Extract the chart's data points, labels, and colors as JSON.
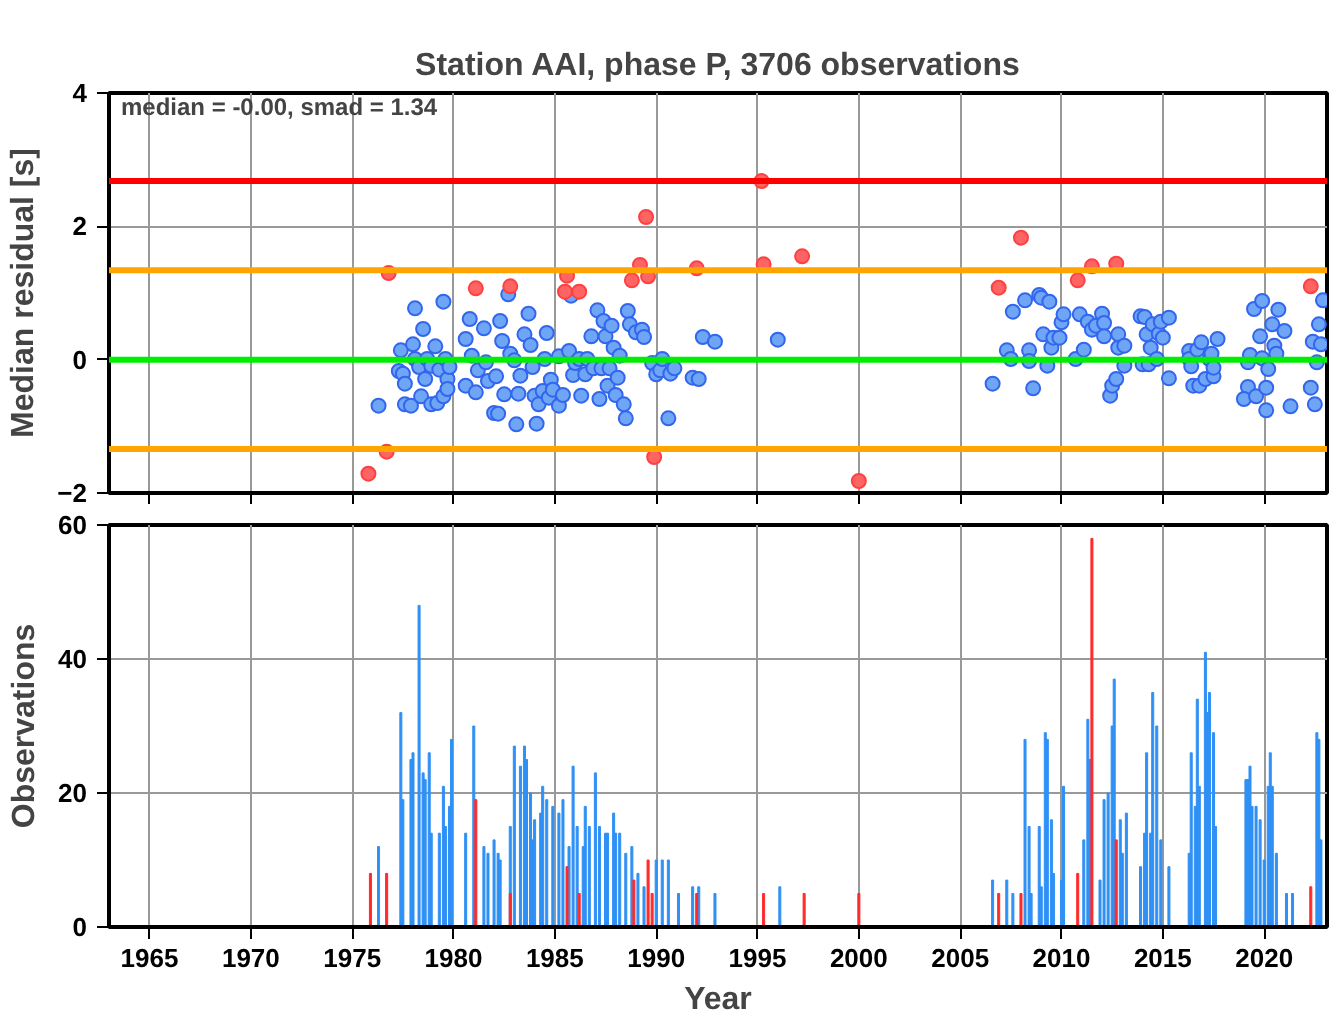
{
  "chart_data": [
    {
      "type": "scatter",
      "title": "Station AAI, phase P, 3706 observations",
      "ylabel": "Median residual [s]",
      "xlim": [
        1963.0,
        2023.1
      ],
      "xticks": [
        1965,
        1970,
        1975,
        1980,
        1985,
        1990,
        1995,
        2000,
        2005,
        2010,
        2015,
        2020
      ],
      "ylim": [
        -2,
        4
      ],
      "yticks": [
        -2,
        0,
        2,
        4
      ],
      "tick_labels": "y",
      "grid": true,
      "marker": "circle",
      "annotations": [
        "median = -0.00, smad = 1.34"
      ],
      "ref_lines": [
        {
          "axis": "y",
          "value": 2.68,
          "color": "#ff0000"
        },
        {
          "axis": "y",
          "value": 1.34,
          "color": "#ffa500"
        },
        {
          "axis": "y",
          "value": 0,
          "color": "#00ee00"
        },
        {
          "axis": "y",
          "value": -1.34,
          "color": "#ffa500"
        }
      ],
      "series": [
        {
          "color": "#6ea6f5",
          "x": [
            1976.3,
            1977.4,
            1977.3,
            1977.5,
            1977.6,
            1977.6,
            1977.9,
            1978.0,
            1978.1,
            1978.1,
            1978.3,
            1978.4,
            1978.5,
            1978.6,
            1978.7,
            1978.9,
            1978.9,
            1979.1,
            1979.2,
            1979.3,
            1979.5,
            1979.5,
            1979.6,
            1979.7,
            1979.8,
            1979.7,
            1980.6,
            1980.6,
            1980.8,
            1980.9,
            1981.1,
            1981.2,
            1981.5,
            1981.6,
            1981.7,
            1982.0,
            1982.2,
            1982.1,
            1982.3,
            1982.4,
            1982.5,
            1982.7,
            1982.8,
            1983.0,
            1983.1,
            1983.2,
            1983.3,
            1983.5,
            1983.7,
            1983.8,
            1983.9,
            1984.0,
            1984.1,
            1984.2,
            1984.4,
            1984.5,
            1984.6,
            1984.7,
            1984.8,
            1984.9,
            1985.2,
            1985.2,
            1985.4,
            1985.7,
            1985.8,
            1985.9,
            1986.0,
            1986.2,
            1986.3,
            1986.5,
            1986.6,
            1986.8,
            1986.9,
            1987.1,
            1987.2,
            1987.3,
            1987.4,
            1987.5,
            1987.6,
            1987.7,
            1987.8,
            1987.9,
            1988.0,
            1988.1,
            1988.2,
            1988.4,
            1988.5,
            1988.6,
            1988.7,
            1989.0,
            1989.3,
            1989.4,
            1989.8,
            1990.0,
            1990.2,
            1990.3,
            1990.6,
            1990.7,
            1990.9,
            1991.8,
            1992.1,
            1992.3,
            1992.9,
            1996.0,
            2006.6,
            2007.3,
            2007.5,
            2007.6,
            2008.2,
            2008.4,
            2008.4,
            2008.6,
            2008.9,
            2009.0,
            2009.4,
            2009.1,
            2009.3,
            2009.5,
            2009.6,
            2009.9,
            2010.0,
            2010.1,
            2010.7,
            2010.9,
            2011.1,
            2011.3,
            2011.5,
            2011.7,
            2012.0,
            2012.1,
            2012.1,
            2012.4,
            2012.5,
            2012.7,
            2012.8,
            2012.8,
            2013.1,
            2013.1,
            2013.9,
            2014.1,
            2014.0,
            2014.2,
            2014.3,
            2014.4,
            2014.5,
            2014.8,
            2014.9,
            2014.7,
            2015.0,
            2015.3,
            2015.3,
            2016.3,
            2016.3,
            2016.4,
            2016.5,
            2016.7,
            2016.8,
            2016.9,
            2017.1,
            2017.3,
            2017.4,
            2017.5,
            2017.5,
            2017.7,
            2019.2,
            2019.3,
            2019.2,
            2019.0,
            2019.5,
            2019.6,
            2019.8,
            2019.9,
            2019.9,
            2020.1,
            2020.1,
            2020.2,
            2020.4,
            2020.5,
            2020.6,
            2020.7,
            2021.0,
            2021.3,
            2022.3,
            2022.4,
            2022.5,
            2022.6,
            2022.7,
            2022.8,
            2022.9
          ],
          "values": [
            -0.69,
            0.14,
            -0.17,
            -0.21,
            -0.36,
            -0.67,
            -0.69,
            0.23,
            0.77,
            0.01,
            -0.11,
            -0.55,
            0.46,
            -0.29,
            0.01,
            -0.67,
            -0.09,
            0.2,
            -0.65,
            -0.15,
            -0.55,
            0.87,
            0.01,
            -0.29,
            -0.11,
            -0.44,
            0.31,
            -0.39,
            0.61,
            0.06,
            -0.49,
            -0.16,
            0.47,
            -0.04,
            -0.32,
            -0.8,
            -0.81,
            -0.25,
            0.58,
            0.28,
            -0.52,
            0.98,
            0.09,
            -0.01,
            -0.97,
            -0.51,
            -0.24,
            0.38,
            0.69,
            0.22,
            -0.11,
            -0.54,
            -0.96,
            -0.67,
            -0.47,
            0.01,
            0.4,
            -0.57,
            -0.3,
            -0.45,
            0.05,
            -0.69,
            -0.53,
            0.13,
            0.96,
            -0.23,
            -0.05,
            0.01,
            -0.54,
            -0.22,
            0.01,
            0.35,
            -0.13,
            0.74,
            -0.59,
            -0.13,
            0.58,
            0.35,
            -0.39,
            -0.13,
            0.51,
            0.18,
            -0.53,
            -0.27,
            0.06,
            -0.67,
            -0.88,
            0.73,
            0.53,
            0.41,
            0.45,
            0.34,
            -0.05,
            -0.22,
            -0.16,
            0.01,
            -0.88,
            -0.21,
            -0.13,
            -0.27,
            -0.29,
            0.34,
            0.27,
            0.3,
            -0.36,
            0.14,
            0.01,
            0.72,
            0.89,
            0.14,
            -0.02,
            -0.43,
            0.97,
            0.93,
            0.87,
            0.38,
            -0.09,
            0.18,
            0.33,
            0.33,
            0.56,
            0.68,
            0.01,
            0.68,
            0.15,
            0.57,
            0.45,
            0.51,
            0.69,
            0.55,
            0.35,
            -0.54,
            -0.39,
            -0.29,
            0.38,
            0.18,
            -0.09,
            0.21,
            0.65,
            0.64,
            -0.07,
            0.38,
            -0.07,
            0.18,
            0.53,
            0.39,
            0.57,
            0.01,
            0.33,
            0.63,
            -0.28,
            0.13,
            0.01,
            -0.1,
            -0.39,
            0.15,
            -0.39,
            0.26,
            -0.29,
            0.01,
            0.09,
            -0.25,
            -0.12,
            0.31,
            -0.04,
            0.07,
            -0.41,
            -0.59,
            0.76,
            -0.55,
            0.35,
            0.88,
            0.02,
            -0.76,
            -0.42,
            -0.14,
            0.53,
            0.21,
            0.09,
            0.75,
            0.43,
            -0.7,
            -0.42,
            0.27,
            -0.67,
            -0.04,
            0.53,
            0.23,
            0.89
          ]
        },
        {
          "color": "#ff6464",
          "x": [
            1976.8,
            1975.8,
            1976.7,
            1981.1,
            1982.8,
            1985.6,
            1985.5,
            1986.2,
            1989.5,
            1989.2,
            1988.8,
            1989.6,
            1989.9,
            1992.0,
            1995.2,
            1995.3,
            1997.2,
            2000.0,
            2008.0,
            2006.9,
            2011.5,
            2010.8,
            2012.7,
            2022.3
          ],
          "values": [
            1.3,
            -1.71,
            -1.38,
            1.07,
            1.1,
            1.26,
            1.02,
            1.02,
            2.14,
            1.42,
            1.19,
            1.25,
            -1.46,
            1.37,
            2.68,
            1.43,
            1.55,
            -1.82,
            1.83,
            1.08,
            1.4,
            1.19,
            1.44,
            1.1
          ]
        }
      ]
    },
    {
      "type": "bar",
      "xlabel": "Year",
      "ylabel": "Observations",
      "xlim": [
        1963.0,
        2023.1
      ],
      "xticks": [
        1965,
        1970,
        1975,
        1980,
        1985,
        1990,
        1995,
        2000,
        2005,
        2010,
        2015,
        2020
      ],
      "ylim": [
        0,
        60
      ],
      "yticks": [
        0,
        20,
        40,
        60
      ],
      "grid": true,
      "series": [
        {
          "color": "#2f90f5",
          "x": [
            1976.3,
            1977.4,
            1977.5,
            1977.9,
            1978.0,
            1978.3,
            1978.5,
            1978.6,
            1978.8,
            1978.9,
            1979.3,
            1979.5,
            1979.6,
            1979.8,
            1979.9,
            1980.6,
            1981.0,
            1981.5,
            1981.7,
            1982.0,
            1982.2,
            1982.3,
            1982.8,
            1983.0,
            1983.3,
            1983.5,
            1983.6,
            1983.8,
            1983.9,
            1984.0,
            1984.3,
            1984.4,
            1984.6,
            1984.9,
            1985.2,
            1985.4,
            1985.7,
            1985.9,
            1986.1,
            1986.4,
            1986.5,
            1986.7,
            1987.0,
            1987.2,
            1987.5,
            1987.6,
            1987.9,
            1988.0,
            1988.2,
            1988.5,
            1988.8,
            1989.1,
            1989.4,
            1990.0,
            1990.3,
            1990.6,
            1991.1,
            1991.8,
            1992.1,
            1992.9,
            1996.1,
            2006.6,
            2007.3,
            2007.6,
            2008.2,
            2008.4,
            2008.5,
            2008.9,
            2009.0,
            2009.2,
            2009.3,
            2009.5,
            2009.6,
            2010.0,
            2010.1,
            2011.1,
            2011.3,
            2011.4,
            2011.9,
            2012.1,
            2012.3,
            2012.5,
            2012.6,
            2012.9,
            2013.0,
            2013.2,
            2013.9,
            2014.1,
            2014.2,
            2014.4,
            2014.5,
            2014.7,
            2014.9,
            2015.3,
            2016.3,
            2016.4,
            2016.6,
            2016.7,
            2016.8,
            2017.1,
            2017.2,
            2017.3,
            2017.5,
            2017.6,
            2019.1,
            2019.2,
            2019.3,
            2019.4,
            2019.6,
            2019.8,
            2020.0,
            2020.2,
            2020.3,
            2020.4,
            2020.6,
            2021.1,
            2021.4,
            2022.6,
            2022.7,
            2022.8
          ],
          "values": [
            12,
            32,
            19,
            25,
            26,
            48,
            23,
            22,
            26,
            14,
            14,
            21,
            15,
            18,
            28,
            14,
            30,
            12,
            11,
            13,
            11,
            10,
            15,
            27,
            24,
            27,
            25,
            20,
            13,
            16,
            17,
            21,
            19,
            18,
            17,
            19,
            12,
            24,
            15,
            12,
            18,
            15,
            23,
            15,
            14,
            14,
            17,
            14,
            14,
            11,
            12,
            8,
            6,
            10,
            10,
            10,
            5,
            6,
            6,
            5,
            6,
            7,
            7,
            5,
            28,
            15,
            5,
            15,
            6,
            29,
            28,
            16,
            8,
            7,
            21,
            13,
            31,
            25,
            7,
            19,
            20,
            30,
            37,
            16,
            11,
            17,
            9,
            14,
            26,
            14,
            35,
            30,
            13,
            9,
            11,
            26,
            18,
            34,
            21,
            41,
            32,
            35,
            29,
            15,
            22,
            22,
            24,
            18,
            18,
            16,
            10,
            21,
            26,
            21,
            11,
            5,
            5,
            29,
            28,
            13
          ]
        },
        {
          "color": "#ff2a2a",
          "x": [
            1975.9,
            1976.7,
            1981.1,
            1982.8,
            1985.6,
            1986.2,
            1988.9,
            1989.6,
            1989.8,
            1992.0,
            1995.3,
            1997.3,
            2000.0,
            2006.9,
            2008.0,
            2010.8,
            2011.5,
            2012.7,
            2022.3
          ],
          "values": [
            8,
            8,
            19,
            5,
            9,
            5,
            7,
            10,
            5,
            5,
            5,
            5,
            5,
            5,
            5,
            8,
            58,
            13,
            6
          ]
        }
      ]
    }
  ]
}
